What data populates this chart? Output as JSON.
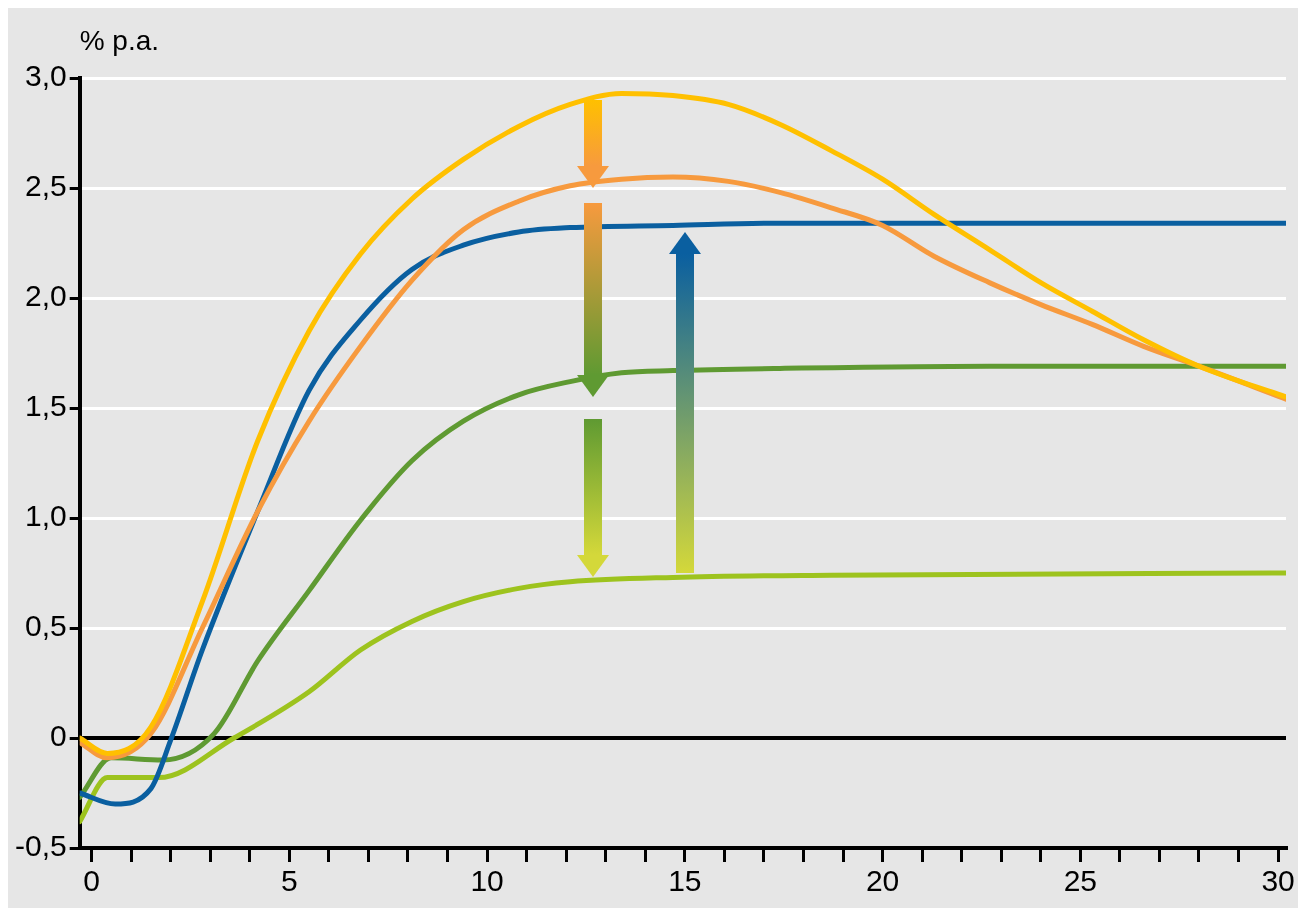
{
  "chart_data": {
    "type": "line",
    "ylabel": "% p.a.",
    "x": [
      -0.3,
      0.4,
      1.5,
      2.8,
      4.2,
      5.5,
      6.8,
      8.1,
      9.4,
      10.8,
      12.1,
      13.4,
      14.7,
      16.1,
      17.4,
      18.7,
      20.0,
      21.3,
      22.7,
      24.0,
      25.3,
      26.6,
      28.0,
      30.2
    ],
    "series": [
      {
        "color": "#ffc000",
        "values": [
          0,
          -0.07,
          0.05,
          0.62,
          1.35,
          1.85,
          2.2,
          2.45,
          2.63,
          2.78,
          2.88,
          2.93,
          2.92,
          2.88,
          2.79,
          2.67,
          2.54,
          2.38,
          2.22,
          2.07,
          1.94,
          1.81,
          1.69,
          1.55
        ]
      },
      {
        "color": "#f79a3e",
        "values": [
          -0.02,
          -0.09,
          0.02,
          0.5,
          1.03,
          1.44,
          1.78,
          2.08,
          2.31,
          2.44,
          2.51,
          2.54,
          2.55,
          2.53,
          2.48,
          2.41,
          2.33,
          2.19,
          2.07,
          1.97,
          1.88,
          1.78,
          1.69,
          1.54
        ]
      },
      {
        "color": "#0a5fa0",
        "x": [
          -0.3,
          0.6,
          1.5,
          2.0,
          2.8,
          4.2,
          5.5,
          6.8,
          8.1,
          9.4,
          10.8,
          12.1,
          14.7,
          17.4,
          22.7,
          30.2
        ],
        "values": [
          -0.25,
          -0.3,
          -0.23,
          -0.01,
          0.4,
          1.03,
          1.58,
          1.9,
          2.13,
          2.24,
          2.3,
          2.32,
          2.33,
          2.34,
          2.34,
          2.34
        ]
      },
      {
        "color": "#5f9a32",
        "x": [
          -0.3,
          0.5,
          1.8,
          3.1,
          4.2,
          5.5,
          6.8,
          8.1,
          9.4,
          10.8,
          12.1,
          13.4,
          14.7,
          17.4,
          22.7,
          30.2
        ],
        "values": [
          -0.27,
          -0.09,
          -0.1,
          0.02,
          0.35,
          0.67,
          0.99,
          1.26,
          1.44,
          1.56,
          1.62,
          1.66,
          1.67,
          1.68,
          1.69,
          1.69
        ]
      },
      {
        "color": "#9dc31e",
        "x": [
          -0.3,
          0.4,
          1.7,
          3.6,
          5.5,
          6.8,
          8.1,
          9.4,
          10.8,
          12.1,
          14.7,
          18.7,
          30.2
        ],
        "values": [
          -0.38,
          -0.18,
          -0.18,
          0,
          0.21,
          0.4,
          0.53,
          0.62,
          0.68,
          0.71,
          0.73,
          0.74,
          0.75
        ]
      }
    ],
    "xlim": [
      -0.3,
      30.2
    ],
    "xticks": [
      0,
      {
        "value": 1,
        "label": null
      },
      {
        "value": 2,
        "label": null
      },
      {
        "value": 3,
        "label": null
      },
      {
        "value": 4,
        "label": null
      },
      5,
      {
        "value": 6,
        "label": null
      },
      {
        "value": 7,
        "label": null
      },
      {
        "value": 8,
        "label": null
      },
      {
        "value": 9,
        "label": null
      },
      10,
      {
        "value": 11,
        "label": null
      },
      {
        "value": 12,
        "label": null
      },
      {
        "value": 13,
        "label": null
      },
      {
        "value": 14,
        "label": null
      },
      15,
      {
        "value": 16,
        "label": null
      },
      {
        "value": 17,
        "label": null
      },
      {
        "value": 18,
        "label": null
      },
      {
        "value": 19,
        "label": null
      },
      20,
      {
        "value": 21,
        "label": null
      },
      {
        "value": 22,
        "label": null
      },
      {
        "value": 23,
        "label": null
      },
      {
        "value": 24,
        "label": null
      },
      25,
      {
        "value": 26,
        "label": null
      },
      {
        "value": 27,
        "label": null
      },
      {
        "value": 28,
        "label": null
      },
      {
        "value": 29,
        "label": null
      },
      30
    ],
    "ylim": [
      -0.5,
      3.0
    ],
    "yticks": [
      {
        "value": -0.5,
        "label": "-0,5"
      },
      0,
      {
        "value": 0.5,
        "label": "0,5"
      },
      {
        "value": 1,
        "label": "1,0"
      },
      {
        "value": 1.5,
        "label": "1,5"
      },
      {
        "value": 2,
        "label": "2,0"
      },
      {
        "value": 2.5,
        "label": "2,5"
      },
      {
        "value": 3,
        "label": "3,0"
      }
    ],
    "ref_lines": [
      {
        "axis": "y",
        "value": 0,
        "color": "#000000"
      }
    ],
    "grid": "y",
    "legend": false,
    "marker": "none",
    "line_style": "solid"
  }
}
